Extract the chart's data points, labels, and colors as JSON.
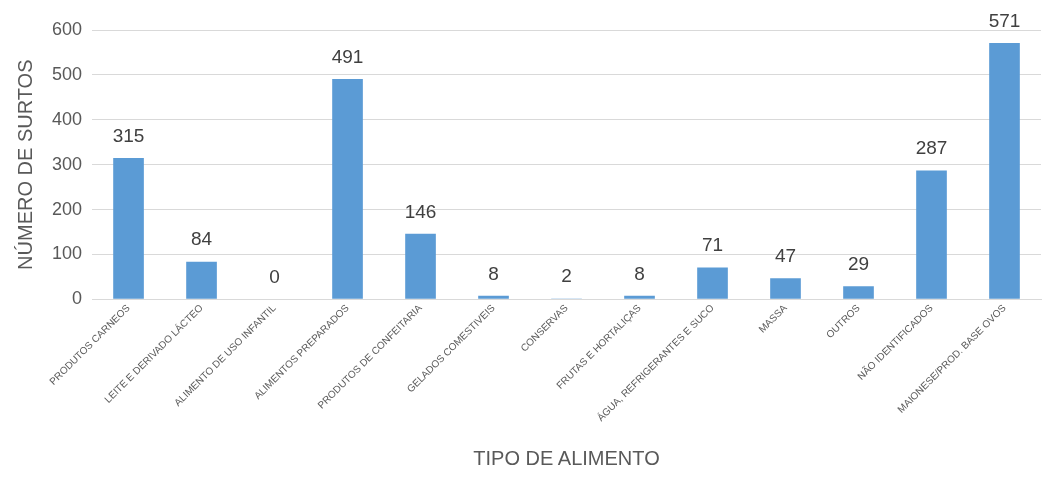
{
  "chart_data": {
    "type": "bar",
    "xlabel": "TIPO DE ALIMENTO",
    "ylabel": "NÚMERO DE SURTOS",
    "categories": [
      "PRODUTOS CARNEOS",
      "LEITE E DERIVADO LÁCTEO",
      "ALIMENTO DE USO INFANTIL",
      "ALIMENTOS PREPARADOS",
      "PRODUTOS DE CONFEITARIA",
      "GELADOS COMESTIVEIS",
      "CONSERVAS",
      "FRUTAS E HORTALIÇAS",
      "ÁGUA, REFRIGERANTES E SUCO",
      "MASSA",
      "OUTROS",
      "NÃO IDENTIFICADOS",
      "MAIONESE/PROD. BASE OVOS"
    ],
    "values": [
      315,
      84,
      0,
      491,
      146,
      8,
      2,
      8,
      71,
      47,
      29,
      287,
      571
    ],
    "color": "#5b9bd5",
    "ylim": [
      0,
      600
    ],
    "yticks": [
      0,
      100,
      200,
      300,
      400,
      500,
      600
    ],
    "grid": "y",
    "data_labels": true
  }
}
